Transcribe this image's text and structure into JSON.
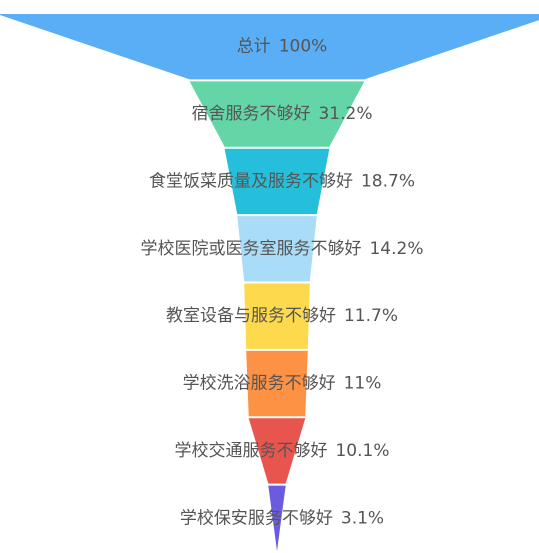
{
  "chart_data": {
    "type": "funnel",
    "categories": [
      "总计",
      "宿舍服务不够好",
      "食堂饭菜质量及服务不够好",
      "学校医院或医务室服务不够好",
      "教室设备与服务不够好",
      "学校洗浴服务不够好",
      "学校交通服务不够好",
      "学校保安服务不够好"
    ],
    "values": [
      100,
      31.2,
      18.7,
      14.2,
      11.7,
      11,
      10.1,
      3.1
    ],
    "value_labels": [
      "100%",
      "31.2%",
      "18.7%",
      "14.2%",
      "11.7%",
      "11%",
      "10.1%",
      "3.1%"
    ],
    "colors": [
      "#5aaef5",
      "#63d5a6",
      "#25bfdc",
      "#a9dcf7",
      "#fdd94d",
      "#fd9144",
      "#e8554e",
      "#6b5be0"
    ]
  }
}
